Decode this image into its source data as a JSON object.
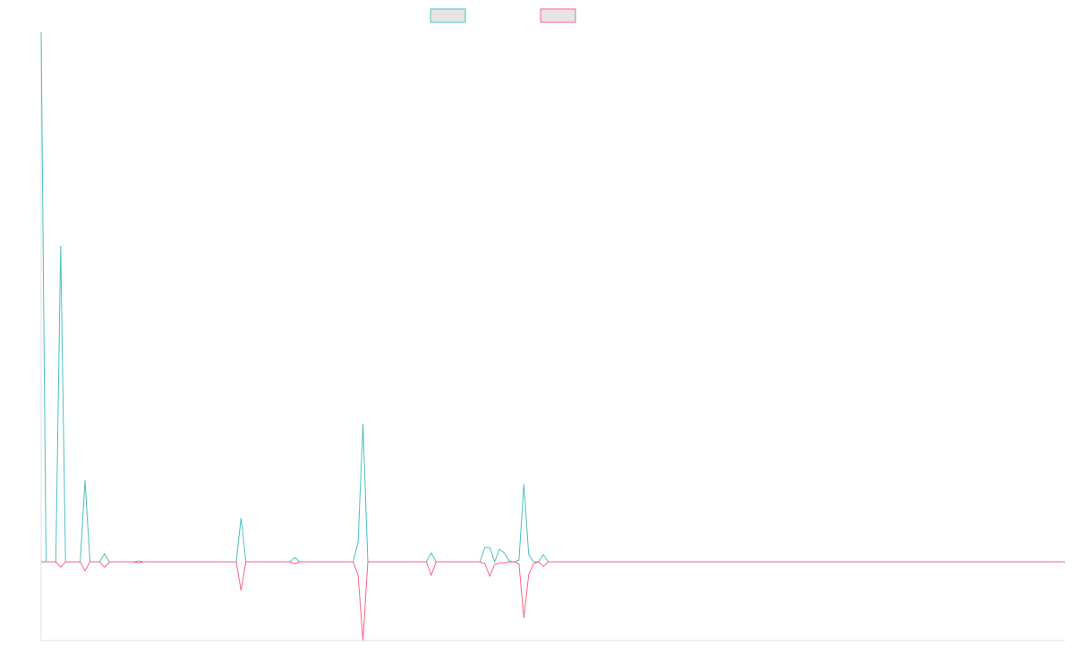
{
  "chart_data": {
    "type": "line",
    "ylim": [
      -88,
      592
    ],
    "series": [
      {
        "color": "#4bc0c0",
        "fill": "#e5e5e5",
        "values": [
          592,
          0,
          0,
          0,
          353,
          0,
          0,
          0,
          0,
          91,
          0,
          0,
          0,
          9,
          0,
          0,
          0,
          0,
          0,
          0,
          1,
          0,
          0,
          0,
          0,
          0,
          0,
          0,
          0,
          0,
          0,
          0,
          0,
          0,
          0,
          0,
          0,
          0,
          0,
          0,
          0,
          49,
          0,
          0,
          0,
          0,
          0,
          0,
          0,
          0,
          0,
          0,
          5,
          0,
          0,
          0,
          0,
          0,
          0,
          0,
          0,
          0,
          0,
          0,
          0,
          22,
          154,
          0,
          0,
          0,
          0,
          0,
          0,
          0,
          0,
          0,
          0,
          0,
          0,
          0,
          10,
          0,
          0,
          0,
          0,
          0,
          0,
          0,
          0,
          0,
          0,
          16,
          16,
          0,
          14,
          10,
          1,
          0,
          2,
          87,
          8,
          0,
          0,
          8,
          0,
          0,
          0,
          0,
          0,
          0,
          0,
          0,
          0,
          0,
          0,
          0,
          0,
          0,
          0,
          0,
          0,
          0,
          0,
          0,
          0,
          0,
          0,
          0,
          0,
          0,
          0,
          0,
          0,
          0,
          0,
          0,
          0,
          0,
          0,
          0,
          0,
          0,
          0,
          0,
          0,
          0,
          0,
          0,
          0,
          0,
          0,
          0,
          0,
          0,
          0,
          0,
          0,
          0,
          0,
          0,
          0,
          0,
          0,
          0,
          0,
          0,
          0,
          0,
          0,
          0,
          0,
          0,
          0,
          0,
          0,
          0,
          0,
          0,
          0,
          0,
          0,
          0,
          0,
          0,
          0,
          0,
          0,
          0,
          0,
          0,
          0,
          0,
          0,
          0,
          0,
          0,
          0,
          0,
          0,
          0,
          0,
          0,
          0,
          0,
          0,
          0,
          0,
          0,
          0,
          0,
          0
        ]
      },
      {
        "color": "#ff6384",
        "fill": "#e5e5e5",
        "values": [
          0,
          0,
          0,
          0,
          -6,
          0,
          0,
          0,
          0,
          -10,
          0,
          0,
          0,
          -6,
          0,
          0,
          0,
          0,
          0,
          0,
          -1,
          0,
          0,
          0,
          0,
          0,
          0,
          0,
          0,
          0,
          0,
          0,
          0,
          0,
          0,
          0,
          0,
          0,
          0,
          0,
          0,
          -32,
          0,
          0,
          0,
          0,
          0,
          0,
          0,
          0,
          0,
          0,
          -2,
          0,
          0,
          0,
          0,
          0,
          0,
          0,
          0,
          0,
          0,
          0,
          0,
          -15,
          -88,
          0,
          0,
          0,
          0,
          0,
          0,
          0,
          0,
          0,
          0,
          0,
          0,
          0,
          -15,
          0,
          0,
          0,
          0,
          0,
          0,
          0,
          0,
          0,
          0,
          -2,
          -16,
          -3,
          -1,
          -1,
          0,
          0,
          -2,
          -63,
          -14,
          -2,
          0,
          -5,
          0,
          0,
          0,
          0,
          0,
          0,
          0,
          0,
          0,
          0,
          0,
          0,
          0,
          0,
          0,
          0,
          0,
          0,
          0,
          0,
          0,
          0,
          0,
          0,
          0,
          0,
          0,
          0,
          0,
          0,
          0,
          0,
          0,
          0,
          0,
          0,
          0,
          0,
          0,
          0,
          0,
          0,
          0,
          0,
          0,
          0,
          0,
          0,
          0,
          0,
          0,
          0,
          0,
          0,
          0,
          0,
          0,
          0,
          0,
          0,
          0,
          0,
          0,
          0,
          0,
          0,
          0,
          0,
          0,
          0,
          0,
          0,
          0,
          0,
          0,
          0,
          0,
          0,
          0,
          0,
          0,
          0,
          0,
          0,
          0,
          0,
          0,
          0,
          0,
          0,
          0,
          0,
          0,
          0,
          0,
          0,
          0,
          0,
          0,
          0,
          0,
          0,
          0,
          0,
          0,
          0,
          0
        ]
      }
    ]
  }
}
